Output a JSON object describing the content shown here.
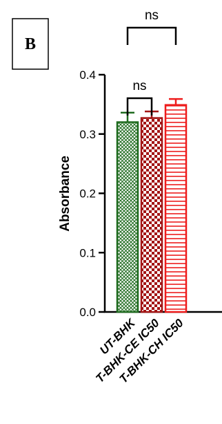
{
  "chart_data": {
    "type": "bar",
    "panel_label": "B",
    "ylabel": "Absorbance",
    "xlabel": "",
    "ylim": [
      0,
      0.4
    ],
    "yticks": [
      0.0,
      0.1,
      0.2,
      0.3,
      0.4
    ],
    "ytick_labels": [
      "0.0",
      "0.1",
      "0.2",
      "0.3",
      "0.4"
    ],
    "categories": [
      "UT-BHK",
      "T-BHK-CE IC50",
      "T-BHK-CH IC50"
    ],
    "values": [
      0.32,
      0.327,
      0.349
    ],
    "errors": [
      0.016,
      0.011,
      0.01
    ],
    "colors": [
      "#1f6b1f",
      "#a31515",
      "#ee1c1c"
    ],
    "patterns": [
      "crosshatch",
      "checker",
      "horizontal-lines"
    ],
    "significance": [
      {
        "from": 0,
        "to": 1,
        "label": "ns"
      },
      {
        "from": 0,
        "to": 2,
        "label": "ns"
      }
    ]
  }
}
